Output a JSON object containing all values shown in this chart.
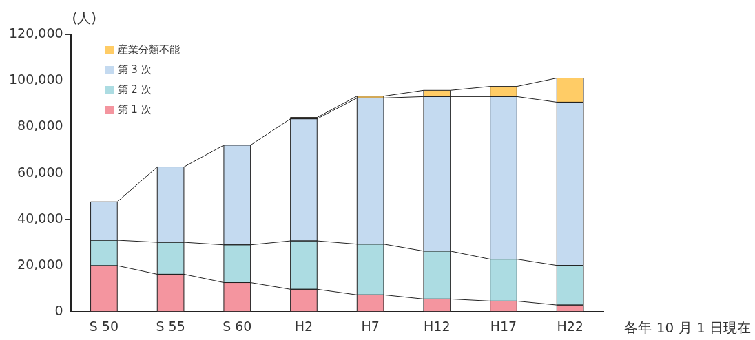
{
  "chart_data": {
    "type": "bar",
    "stacked": true,
    "ylabel": "(人)",
    "categories": [
      "S 50",
      "S 55",
      "S 60",
      "H2",
      "H7",
      "H12",
      "H17",
      "H22"
    ],
    "series": [
      {
        "name": "第 1 次",
        "color": "#f4959f",
        "values": [
          20000,
          16300,
          12700,
          9800,
          7400,
          5600,
          4700,
          3000
        ]
      },
      {
        "name": "第 2 次",
        "color": "#acdce2",
        "values": [
          11000,
          13800,
          16300,
          20900,
          21900,
          20700,
          18100,
          17100
        ]
      },
      {
        "name": "第 3 次",
        "color": "#c4daf0",
        "values": [
          16600,
          32600,
          43100,
          52800,
          63200,
          66800,
          70300,
          70600
        ]
      },
      {
        "name": "産業分類不能",
        "color": "#ffcc66",
        "values": [
          null,
          null,
          null,
          600,
          800,
          2700,
          4400,
          10400
        ]
      }
    ],
    "ylim": [
      0,
      120000
    ],
    "yticks": [
      0,
      {
        "value": 20000,
        "label": "20,000"
      },
      {
        "value": 40000,
        "label": "40,000"
      },
      {
        "value": 60000,
        "label": "60,000"
      },
      {
        "value": 80000,
        "label": "80,000"
      },
      {
        "value": 100000,
        "label": "100,000"
      },
      {
        "value": 120000,
        "label": "120,000"
      }
    ],
    "grid": false,
    "legend": "top left",
    "annotations": [
      "各年 10 月 1 日現在"
    ]
  }
}
